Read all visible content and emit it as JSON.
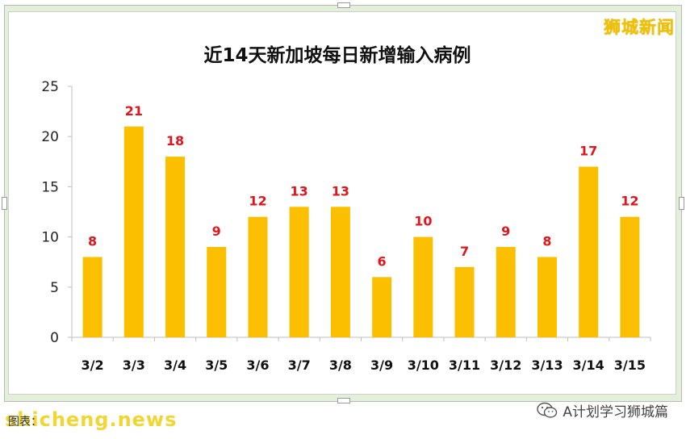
{
  "brand": {
    "name": "狮城新闻",
    "color": "#f2c200"
  },
  "footer": {
    "watermark": "shicheng.news",
    "source_label": "图表：",
    "account": "A计划学习狮城篇",
    "account_icon": "wechat-icon"
  },
  "colors": {
    "bar": "#fbbf00",
    "data_label": "#e0161c",
    "frame": "#e2efd9"
  },
  "chart_data": {
    "type": "bar",
    "title": "近14天新加坡每日新增输入病例",
    "xlabel": "",
    "ylabel": "",
    "categories": [
      "3/2",
      "3/3",
      "3/4",
      "3/5",
      "3/6",
      "3/7",
      "3/8",
      "3/9",
      "3/10",
      "3/11",
      "3/12",
      "3/13",
      "3/14",
      "3/15"
    ],
    "values": [
      8,
      21,
      18,
      9,
      12,
      13,
      13,
      6,
      10,
      7,
      9,
      8,
      17,
      12
    ],
    "ylim": [
      0,
      25
    ],
    "yticks": [
      "0",
      "5",
      "10",
      "15",
      "20",
      "25"
    ],
    "grid": false,
    "legend": "none"
  }
}
